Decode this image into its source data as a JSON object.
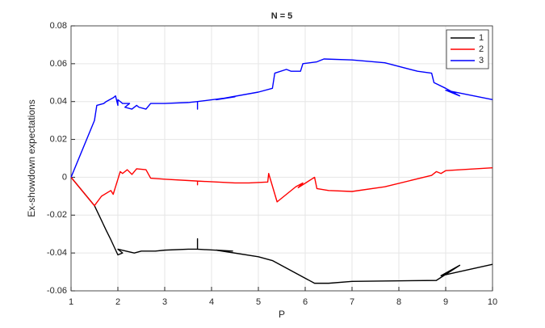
{
  "chart_data": {
    "type": "line",
    "title": "N = 5",
    "x_label": "P",
    "y_label": "Ex-showdown expectations",
    "xlim": [
      1,
      10
    ],
    "xticks": [
      1,
      2,
      3,
      4,
      5,
      6,
      7,
      8,
      9,
      10
    ],
    "ylim": [
      -0.06,
      0.08
    ],
    "yticks": [
      -0.06,
      -0.04,
      -0.02,
      0,
      0.02,
      0.04,
      0.06,
      0.08
    ],
    "grid": true,
    "legend": "top-right",
    "series": [
      {
        "name": "1",
        "color": "#000000",
        "x": [
          1,
          1.5,
          1.75,
          1.85,
          2.0,
          2.1,
          2.0,
          2.35,
          2.5,
          2.8,
          3.0,
          3.5,
          3.7,
          3.7,
          3.7,
          4.45,
          4.1,
          5.0,
          5.3,
          6.2,
          6.5,
          7.0,
          8.8,
          9.3,
          8.9,
          10
        ],
        "values": [
          0,
          -0.015,
          -0.028,
          -0.033,
          -0.041,
          -0.04,
          -0.038,
          -0.04,
          -0.039,
          -0.039,
          -0.0385,
          -0.038,
          -0.038,
          -0.0325,
          -0.038,
          -0.039,
          -0.0385,
          -0.042,
          -0.044,
          -0.056,
          -0.056,
          -0.055,
          -0.0545,
          -0.0465,
          -0.052,
          -0.046
        ]
      },
      {
        "name": "2",
        "color": "#ff0000",
        "x": [
          1,
          1.5,
          1.65,
          1.85,
          1.9,
          2.0,
          2.05,
          2.1,
          2.2,
          2.3,
          2.4,
          2.6,
          2.7,
          3.0,
          3.7,
          3.7,
          3.7,
          4.5,
          4.8,
          5.2,
          5.22,
          5.4,
          5.8,
          5.95,
          5.85,
          6.2,
          6.25,
          6.5,
          7.0,
          7.7,
          8.7,
          8.8,
          8.9,
          9.0,
          10
        ],
        "values": [
          0,
          -0.015,
          -0.01,
          -0.007,
          -0.009,
          -0.001,
          0.003,
          0.002,
          0.004,
          0.0015,
          0.0045,
          0.004,
          -0.0005,
          -0.001,
          -0.002,
          -0.004,
          -0.002,
          -0.003,
          -0.003,
          -0.0025,
          0.002,
          -0.013,
          -0.005,
          -0.003,
          -0.0055,
          0.0,
          -0.006,
          -0.007,
          -0.0075,
          -0.005,
          0.001,
          0.003,
          0.002,
          0.0035,
          0.005
        ]
      },
      {
        "name": "3",
        "color": "#0000ff",
        "x": [
          1,
          1.5,
          1.55,
          1.7,
          1.75,
          1.9,
          1.95,
          2.0,
          2.0,
          2.1,
          2.25,
          2.15,
          2.3,
          2.4,
          2.45,
          2.6,
          2.7,
          3.0,
          3.5,
          3.7,
          3.7,
          3.7,
          4.5,
          4.1,
          5.0,
          5.3,
          5.35,
          5.6,
          5.7,
          5.9,
          5.95,
          6.25,
          6.4,
          7.0,
          7.7,
          8.4,
          8.7,
          8.75,
          9.0,
          9.3,
          9.0,
          10
        ],
        "values": [
          0,
          0.03,
          0.038,
          0.039,
          0.04,
          0.042,
          0.043,
          0.038,
          0.041,
          0.039,
          0.039,
          0.037,
          0.036,
          0.038,
          0.037,
          0.036,
          0.039,
          0.039,
          0.0395,
          0.04,
          0.036,
          0.04,
          0.0425,
          0.041,
          0.045,
          0.047,
          0.055,
          0.057,
          0.056,
          0.056,
          0.06,
          0.061,
          0.0625,
          0.062,
          0.0605,
          0.056,
          0.055,
          0.05,
          0.047,
          0.043,
          0.046,
          0.041
        ]
      }
    ]
  }
}
